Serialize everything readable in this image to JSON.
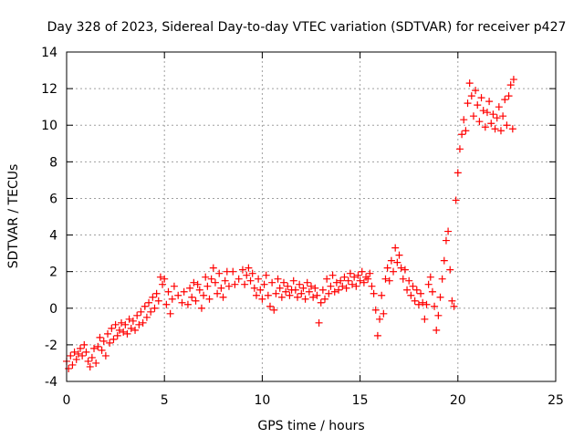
{
  "chart_data": {
    "type": "scatter",
    "title": "Day 328 of 2023, Sidereal Day-to-day VTEC variation (SDTVAR) for receiver p427",
    "xlabel": "GPS time / hours",
    "ylabel": "SDTVAR / TECUs",
    "xlim": [
      0,
      25
    ],
    "ylim": [
      -4,
      14
    ],
    "xticks": [
      0,
      5,
      10,
      15,
      20,
      25
    ],
    "yticks": [
      -4,
      -2,
      0,
      2,
      4,
      6,
      8,
      10,
      12,
      14
    ],
    "xtick_labels": [
      "0",
      "5",
      "10",
      "15",
      "20",
      "25"
    ],
    "ytick_labels": [
      "-4",
      "-2",
      "0",
      "2",
      "4",
      "6",
      "8",
      "10",
      "12",
      "14"
    ],
    "grid": true,
    "marker": "+",
    "color": "#ff0000",
    "series": [
      {
        "name": "SDTVAR",
        "points": [
          [
            0.0,
            -2.9
          ],
          [
            0.1,
            -3.3
          ],
          [
            0.2,
            -2.6
          ],
          [
            0.3,
            -3.1
          ],
          [
            0.4,
            -2.4
          ],
          [
            0.5,
            -2.8
          ],
          [
            0.6,
            -2.5
          ],
          [
            0.7,
            -2.2
          ],
          [
            0.8,
            -2.6
          ],
          [
            0.9,
            -2.0
          ],
          [
            1.0,
            -2.4
          ],
          [
            1.1,
            -2.9
          ],
          [
            1.2,
            -3.2
          ],
          [
            1.3,
            -2.7
          ],
          [
            1.4,
            -2.2
          ],
          [
            1.5,
            -3.0
          ],
          [
            1.6,
            -2.1
          ],
          [
            1.7,
            -1.6
          ],
          [
            1.8,
            -2.3
          ],
          [
            1.9,
            -1.8
          ],
          [
            2.0,
            -2.6
          ],
          [
            2.1,
            -1.4
          ],
          [
            2.2,
            -1.9
          ],
          [
            2.3,
            -1.1
          ],
          [
            2.4,
            -1.7
          ],
          [
            2.5,
            -0.9
          ],
          [
            2.6,
            -1.5
          ],
          [
            2.7,
            -1.2
          ],
          [
            2.8,
            -0.8
          ],
          [
            2.9,
            -1.3
          ],
          [
            3.0,
            -0.9
          ],
          [
            3.1,
            -1.4
          ],
          [
            3.2,
            -0.6
          ],
          [
            3.3,
            -1.1
          ],
          [
            3.4,
            -0.7
          ],
          [
            3.5,
            -1.2
          ],
          [
            3.6,
            -0.4
          ],
          [
            3.7,
            -0.9
          ],
          [
            3.8,
            -0.2
          ],
          [
            3.9,
            -0.8
          ],
          [
            4.0,
            0.1
          ],
          [
            4.1,
            -0.5
          ],
          [
            4.2,
            0.3
          ],
          [
            4.3,
            -0.2
          ],
          [
            4.4,
            0.6
          ],
          [
            4.5,
            0.0
          ],
          [
            4.6,
            0.8
          ],
          [
            4.7,
            0.4
          ],
          [
            4.8,
            1.7
          ],
          [
            4.9,
            1.3
          ],
          [
            5.0,
            1.6
          ],
          [
            5.1,
            0.2
          ],
          [
            5.2,
            0.9
          ],
          [
            5.3,
            -0.3
          ],
          [
            5.4,
            0.5
          ],
          [
            5.5,
            1.2
          ],
          [
            5.7,
            0.7
          ],
          [
            5.9,
            0.3
          ],
          [
            6.0,
            0.9
          ],
          [
            6.2,
            0.2
          ],
          [
            6.3,
            1.1
          ],
          [
            6.4,
            0.6
          ],
          [
            6.5,
            1.4
          ],
          [
            6.6,
            0.4
          ],
          [
            6.7,
            1.3
          ],
          [
            6.8,
            1.0
          ],
          [
            6.9,
            0.0
          ],
          [
            7.0,
            0.7
          ],
          [
            7.1,
            1.7
          ],
          [
            7.2,
            1.2
          ],
          [
            7.3,
            0.5
          ],
          [
            7.4,
            1.6
          ],
          [
            7.5,
            2.2
          ],
          [
            7.6,
            1.4
          ],
          [
            7.7,
            0.8
          ],
          [
            7.8,
            1.9
          ],
          [
            7.9,
            1.1
          ],
          [
            8.0,
            0.6
          ],
          [
            8.1,
            1.5
          ],
          [
            8.2,
            2.0
          ],
          [
            8.3,
            1.2
          ],
          [
            8.5,
            2.0
          ],
          [
            8.6,
            1.3
          ],
          [
            8.8,
            1.6
          ],
          [
            9.0,
            2.1
          ],
          [
            9.1,
            1.3
          ],
          [
            9.2,
            1.8
          ],
          [
            9.3,
            2.2
          ],
          [
            9.4,
            1.5
          ],
          [
            9.5,
            1.9
          ],
          [
            9.6,
            1.1
          ],
          [
            9.7,
            0.7
          ],
          [
            9.8,
            1.6
          ],
          [
            9.9,
            1.0
          ],
          [
            10.0,
            0.5
          ],
          [
            10.1,
            1.3
          ],
          [
            10.2,
            1.8
          ],
          [
            10.3,
            0.7
          ],
          [
            10.4,
            0.1
          ],
          [
            10.5,
            1.4
          ],
          [
            10.6,
            -0.1
          ],
          [
            10.7,
            0.8
          ],
          [
            10.8,
            1.6
          ],
          [
            10.9,
            1.1
          ],
          [
            11.0,
            0.6
          ],
          [
            11.1,
            1.4
          ],
          [
            11.2,
            0.9
          ],
          [
            11.3,
            1.2
          ],
          [
            11.4,
            0.7
          ],
          [
            11.5,
            1.0
          ],
          [
            11.6,
            1.5
          ],
          [
            11.7,
            1.0
          ],
          [
            11.8,
            0.6
          ],
          [
            11.9,
            1.3
          ],
          [
            12.0,
            0.8
          ],
          [
            12.1,
            1.1
          ],
          [
            12.2,
            0.5
          ],
          [
            12.3,
            1.4
          ],
          [
            12.4,
            0.9
          ],
          [
            12.5,
            1.2
          ],
          [
            12.6,
            0.6
          ],
          [
            12.7,
            1.1
          ],
          [
            12.8,
            0.7
          ],
          [
            12.9,
            -0.8
          ],
          [
            13.0,
            0.3
          ],
          [
            13.1,
            1.0
          ],
          [
            13.2,
            0.5
          ],
          [
            13.3,
            1.6
          ],
          [
            13.4,
            0.8
          ],
          [
            13.5,
            1.2
          ],
          [
            13.6,
            1.8
          ],
          [
            13.7,
            0.9
          ],
          [
            13.8,
            1.4
          ],
          [
            13.9,
            1.0
          ],
          [
            14.0,
            1.5
          ],
          [
            14.1,
            1.2
          ],
          [
            14.2,
            1.7
          ],
          [
            14.3,
            1.1
          ],
          [
            14.4,
            1.5
          ],
          [
            14.5,
            1.9
          ],
          [
            14.6,
            1.3
          ],
          [
            14.7,
            1.7
          ],
          [
            14.8,
            1.2
          ],
          [
            14.9,
            1.8
          ],
          [
            15.0,
            1.5
          ],
          [
            15.1,
            2.0
          ],
          [
            15.2,
            1.4
          ],
          [
            15.3,
            1.7
          ],
          [
            15.4,
            1.6
          ],
          [
            15.5,
            1.9
          ],
          [
            15.6,
            1.2
          ],
          [
            15.7,
            0.8
          ],
          [
            15.8,
            -0.1
          ],
          [
            15.9,
            -1.5
          ],
          [
            16.0,
            -0.6
          ],
          [
            16.1,
            0.7
          ],
          [
            16.2,
            -0.3
          ],
          [
            16.3,
            1.6
          ],
          [
            16.4,
            2.2
          ],
          [
            16.5,
            1.5
          ],
          [
            16.6,
            2.6
          ],
          [
            16.7,
            2.0
          ],
          [
            16.8,
            3.3
          ],
          [
            16.9,
            2.5
          ],
          [
            17.0,
            2.9
          ],
          [
            17.1,
            2.2
          ],
          [
            17.2,
            1.6
          ],
          [
            17.3,
            2.1
          ],
          [
            17.4,
            1.0
          ],
          [
            17.5,
            1.5
          ],
          [
            17.6,
            0.7
          ],
          [
            17.7,
            1.2
          ],
          [
            17.8,
            0.4
          ],
          [
            17.9,
            1.0
          ],
          [
            18.0,
            0.2
          ],
          [
            18.1,
            0.8
          ],
          [
            18.2,
            0.3
          ],
          [
            18.3,
            -0.6
          ],
          [
            18.4,
            0.2
          ],
          [
            18.5,
            1.3
          ],
          [
            18.6,
            1.7
          ],
          [
            18.7,
            0.9
          ],
          [
            18.8,
            0.1
          ],
          [
            18.9,
            -1.2
          ],
          [
            19.0,
            -0.4
          ],
          [
            19.1,
            0.6
          ],
          [
            19.2,
            1.6
          ],
          [
            19.3,
            2.6
          ],
          [
            19.4,
            3.7
          ],
          [
            19.5,
            4.2
          ],
          [
            19.6,
            2.1
          ],
          [
            19.7,
            0.4
          ],
          [
            19.8,
            0.1
          ],
          [
            19.9,
            5.9
          ],
          [
            20.0,
            7.4
          ],
          [
            20.1,
            8.7
          ],
          [
            20.2,
            9.5
          ],
          [
            20.3,
            10.3
          ],
          [
            20.4,
            9.7
          ],
          [
            20.5,
            11.2
          ],
          [
            20.6,
            12.3
          ],
          [
            20.7,
            11.6
          ],
          [
            20.8,
            10.5
          ],
          [
            20.9,
            11.9
          ],
          [
            21.0,
            11.1
          ],
          [
            21.1,
            10.2
          ],
          [
            21.2,
            11.5
          ],
          [
            21.3,
            10.8
          ],
          [
            21.4,
            9.9
          ],
          [
            21.5,
            10.7
          ],
          [
            21.6,
            11.3
          ],
          [
            21.7,
            10.1
          ],
          [
            21.8,
            10.6
          ],
          [
            21.9,
            9.8
          ],
          [
            22.0,
            10.4
          ],
          [
            22.1,
            11.0
          ],
          [
            22.2,
            9.7
          ],
          [
            22.3,
            10.5
          ],
          [
            22.4,
            11.4
          ],
          [
            22.5,
            10.0
          ],
          [
            22.6,
            11.6
          ],
          [
            22.7,
            12.2
          ],
          [
            22.8,
            9.8
          ],
          [
            22.85,
            12.5
          ]
        ]
      }
    ]
  }
}
